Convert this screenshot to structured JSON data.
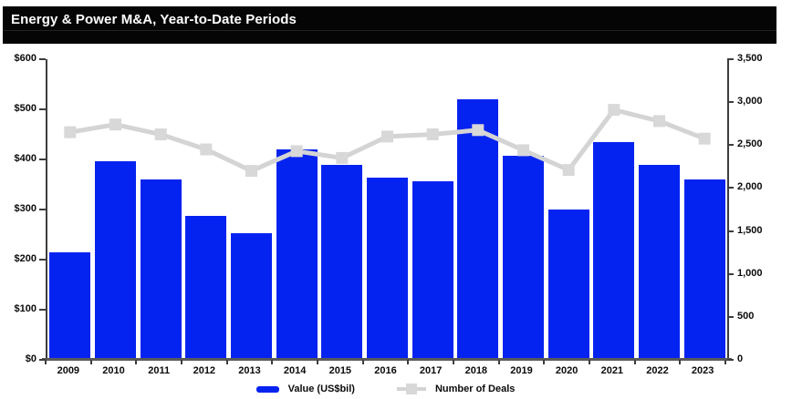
{
  "title": "Energy & Power M&A, Year-to-Date Periods",
  "legend": {
    "value_label": "Value (US$bil)",
    "deals_label": "Number of Deals"
  },
  "colors": {
    "title_bg": "#050505",
    "title_text": "#ffffff",
    "bar": "#0523f0",
    "line": "#d4d4d4",
    "marker": "#d8d8d8",
    "axis": "#3d3d3d",
    "label": "#0a0a0a",
    "background": "#ffffff"
  },
  "chart_data": {
    "type": "bar",
    "subtype": "combo-bar-line-dual-axis",
    "title": "Energy & Power M&A, Year-to-Date Periods",
    "categories": [
      "2009",
      "2010",
      "2011",
      "2012",
      "2013",
      "2014",
      "2015",
      "2016",
      "2017",
      "2018",
      "2019",
      "2020",
      "2021",
      "2022",
      "2023"
    ],
    "series": [
      {
        "name": "Value (US$bil)",
        "type": "bar",
        "axis": "left",
        "values": [
          215,
          397,
          360,
          288,
          252,
          420,
          390,
          363,
          356,
          520,
          408,
          300,
          435,
          389,
          360
        ]
      },
      {
        "name": "Number of Deals",
        "type": "line",
        "axis": "right",
        "values": [
          2650,
          2740,
          2625,
          2450,
          2200,
          2430,
          2350,
          2600,
          2625,
          2675,
          2440,
          2210,
          2910,
          2780,
          2575
        ]
      }
    ],
    "left_axis": {
      "min": 0,
      "max": 600,
      "step": 100,
      "tick_labels": [
        "$0",
        "$100",
        "$200",
        "$300",
        "$400",
        "$500",
        "$600"
      ]
    },
    "right_axis": {
      "min": 0,
      "max": 3500,
      "step": 500,
      "tick_labels": [
        "0",
        "500",
        "1,000",
        "1,500",
        "2,000",
        "2,500",
        "3,000",
        "3,500"
      ]
    },
    "grid": false,
    "legend_position": "bottom"
  }
}
